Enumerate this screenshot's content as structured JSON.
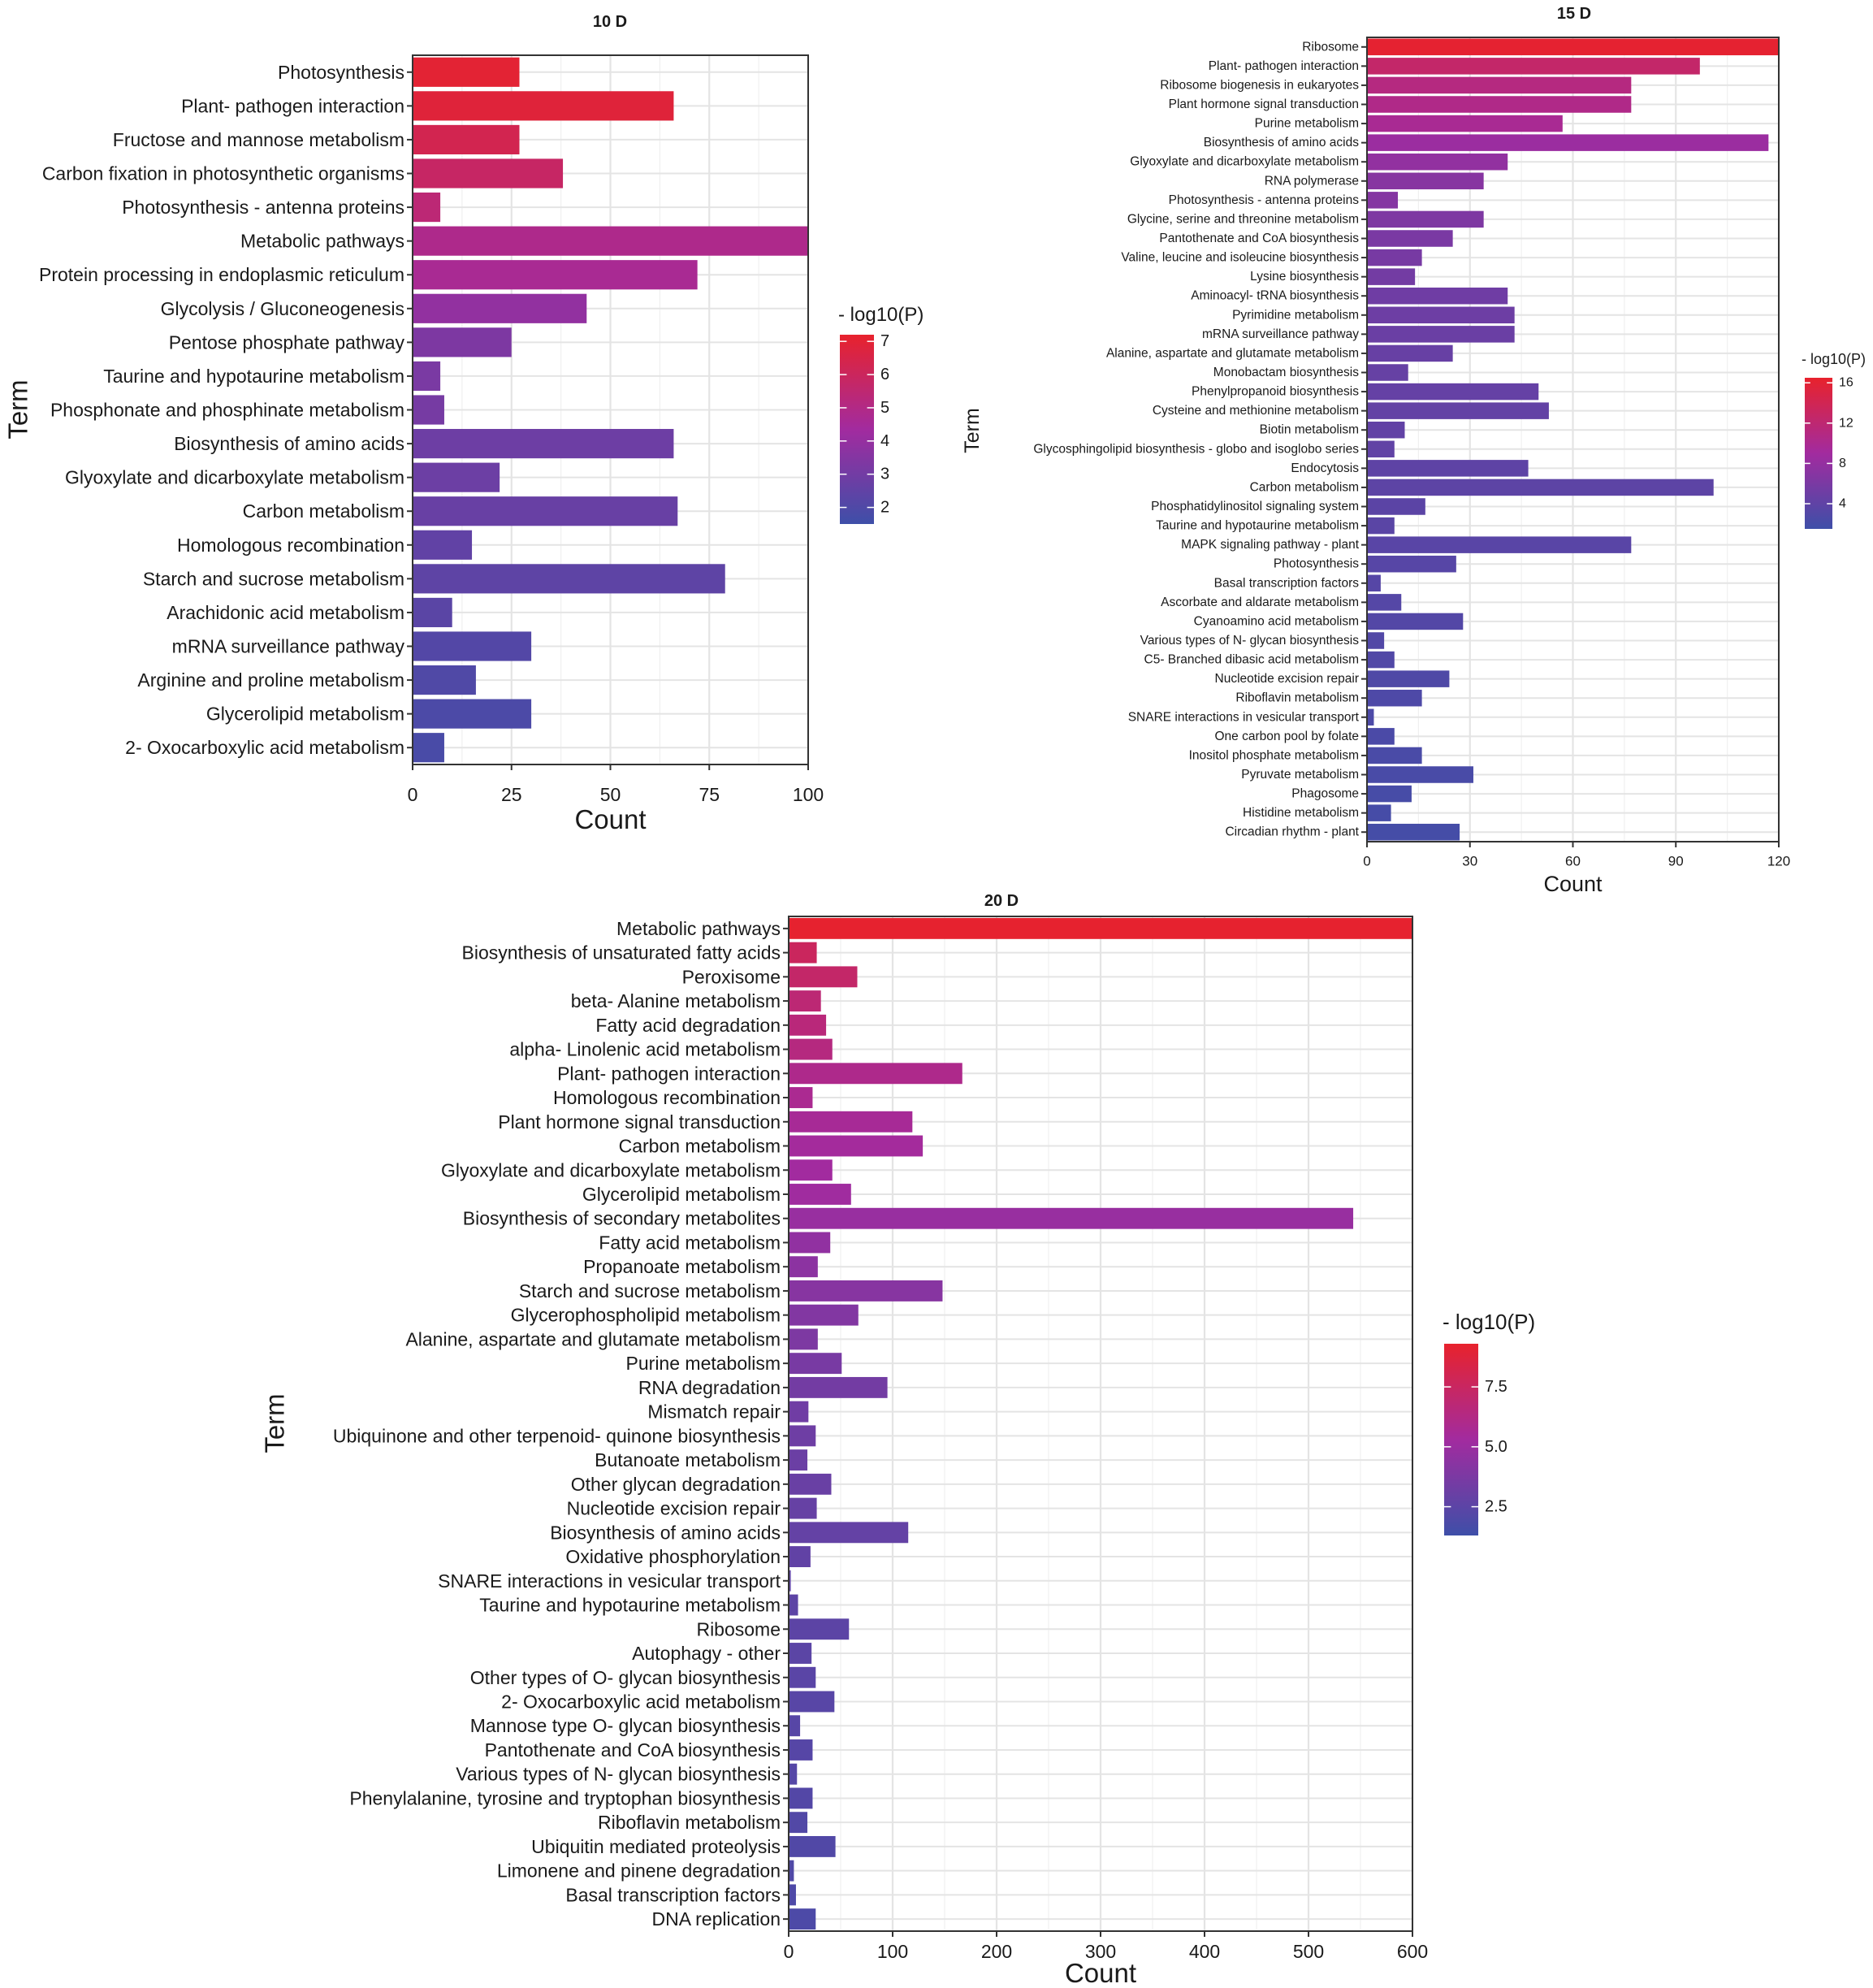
{
  "colorscale": {
    "low": "#3e4fa8",
    "mid": "#a22b9f",
    "high": "#e8222c"
  },
  "chart_data": [
    {
      "type": "bar",
      "orientation": "horizontal",
      "title": "10 D",
      "xlabel": "Count",
      "ylabel": "Term",
      "xlim": [
        0,
        100
      ],
      "xticks": [
        "0",
        "25",
        "50",
        "75",
        "100"
      ],
      "legend_title": "- log10(P)",
      "legend_range": [
        1.5,
        7.2
      ],
      "legend_ticks": [
        "2",
        "3",
        "4",
        "5",
        "6",
        "7"
      ],
      "categories": [
        "Photosynthesis",
        "Plant- pathogen interaction",
        "Fructose and mannose metabolism",
        "Carbon fixation in photosynthetic organisms",
        "Photosynthesis -  antenna proteins",
        "Metabolic pathways",
        "Protein processing in endoplasmic reticulum",
        "Glycolysis / Gluconeogenesis",
        "Pentose phosphate pathway",
        "Taurine and hypotaurine metabolism",
        "Phosphonate and phosphinate metabolism",
        "Biosynthesis of amino acids",
        "Glyoxylate and dicarboxylate metabolism",
        "Carbon metabolism",
        "Homologous recombination",
        "Starch and sucrose metabolism",
        "Arachidonic acid metabolism",
        "mRNA surveillance pathway",
        "Arginine and proline metabolism",
        "Glycerolipid metabolism",
        "2- Oxocarboxylic acid metabolism"
      ],
      "values": [
        27,
        66,
        27,
        38,
        7,
        100,
        72,
        44,
        25,
        7,
        8,
        66,
        22,
        67,
        15,
        79,
        10,
        30,
        16,
        30,
        8
      ],
      "color_values": [
        7.0,
        6.85,
        6.3,
        5.8,
        5.4,
        4.85,
        4.65,
        3.9,
        3.3,
        3.2,
        3.1,
        2.85,
        2.8,
        2.7,
        2.5,
        2.4,
        2.3,
        2.1,
        2.0,
        1.9,
        1.8
      ]
    },
    {
      "type": "bar",
      "orientation": "horizontal",
      "title": "15 D",
      "xlabel": "Count",
      "ylabel": "Term",
      "xlim": [
        0,
        120
      ],
      "xticks": [
        "0",
        "30",
        "60",
        "90",
        "120"
      ],
      "legend_title": "- log10(P)",
      "legend_range": [
        1.5,
        16.5
      ],
      "legend_ticks": [
        "4",
        "8",
        "12",
        "16"
      ],
      "categories": [
        "Ribosome",
        "Plant- pathogen interaction",
        "Ribosome biogenesis in eukaryotes",
        "Plant hormone signal transduction",
        "Purine metabolism",
        "Biosynthesis of amino acids",
        "Glyoxylate and dicarboxylate metabolism",
        "RNA polymerase",
        "Photosynthesis -  antenna proteins",
        "Glycine, serine and threonine metabolism",
        "Pantothenate and CoA biosynthesis",
        "Valine, leucine and isoleucine biosynthesis",
        "Lysine biosynthesis",
        "Aminoacyl- tRNA biosynthesis",
        "Pyrimidine metabolism",
        "mRNA surveillance pathway",
        "Alanine, aspartate and glutamate metabolism",
        "Monobactam biosynthesis",
        "Phenylpropanoid biosynthesis",
        "Cysteine and methionine metabolism",
        "Biotin metabolism",
        "Glycosphingolipid biosynthesis -  globo and isoglobo series",
        "Endocytosis",
        "Carbon metabolism",
        "Phosphatidylinositol signaling system",
        "Taurine and hypotaurine metabolism",
        "MAPK signaling pathway -  plant",
        "Photosynthesis",
        "Basal transcription factors",
        "Ascorbate and aldarate metabolism",
        "Cyanoamino acid metabolism",
        "Various types of N- glycan biosynthesis",
        "C5- Branched dibasic acid metabolism",
        "Nucleotide excision repair",
        "Riboflavin metabolism",
        "SNARE interactions in vesicular transport",
        "One carbon pool by folate",
        "Inositol phosphate metabolism",
        "Pyruvate metabolism",
        "Phagosome",
        "Histidine metabolism",
        "Circadian rhythm -  plant"
      ],
      "values": [
        120,
        97,
        77,
        77,
        57,
        117,
        41,
        34,
        9,
        34,
        25,
        16,
        14,
        41,
        43,
        43,
        25,
        12,
        50,
        53,
        11,
        8,
        47,
        101,
        17,
        8,
        77,
        26,
        4,
        10,
        28,
        5,
        8,
        24,
        16,
        2,
        8,
        16,
        31,
        13,
        7,
        27
      ],
      "color_values": [
        16.2,
        12.5,
        11.0,
        10.5,
        9.8,
        8.5,
        7.8,
        7.0,
        6.8,
        6.3,
        6.0,
        5.8,
        5.5,
        5.2,
        5.0,
        4.8,
        4.6,
        4.5,
        4.4,
        4.3,
        4.2,
        4.1,
        3.9,
        3.8,
        3.7,
        3.6,
        3.5,
        3.4,
        3.3,
        3.2,
        3.1,
        3.0,
        2.9,
        2.8,
        2.7,
        2.6,
        2.5,
        2.4,
        2.3,
        2.2,
        2.1,
        2.0
      ]
    },
    {
      "type": "bar",
      "orientation": "horizontal",
      "title": "20 D",
      "xlabel": "Count",
      "ylabel": "Term",
      "xlim": [
        0,
        600
      ],
      "xticks": [
        "0",
        "100",
        "200",
        "300",
        "400",
        "500",
        "600"
      ],
      "legend_title": "- log10(P)",
      "legend_range": [
        1.3,
        9.3
      ],
      "legend_ticks": [
        "2.5",
        "5.0",
        "7.5"
      ],
      "categories": [
        "Metabolic pathways",
        "Biosynthesis of unsaturated fatty acids",
        "Peroxisome",
        "beta- Alanine metabolism",
        "Fatty acid degradation",
        "alpha- Linolenic acid metabolism",
        "Plant- pathogen interaction",
        "Homologous recombination",
        "Plant hormone signal transduction",
        "Carbon metabolism",
        "Glyoxylate and dicarboxylate metabolism",
        "Glycerolipid metabolism",
        "Biosynthesis of secondary metabolites",
        "Fatty acid metabolism",
        "Propanoate metabolism",
        "Starch and sucrose metabolism",
        "Glycerophospholipid metabolism",
        "Alanine, aspartate and glutamate metabolism",
        "Purine metabolism",
        "RNA degradation",
        "Mismatch repair",
        "Ubiquinone and other terpenoid- quinone biosynthesis",
        "Butanoate metabolism",
        "Other glycan degradation",
        "Nucleotide excision repair",
        "Biosynthesis of amino acids",
        "Oxidative phosphorylation",
        "SNARE interactions in vesicular transport",
        "Taurine and hypotaurine metabolism",
        "Ribosome",
        "Autophagy -  other",
        "Other types of O- glycan biosynthesis",
        "2- Oxocarboxylic acid metabolism",
        "Mannose type O- glycan biosynthesis",
        "Pantothenate and CoA biosynthesis",
        "Various types of N- glycan biosynthesis",
        "Phenylalanine, tyrosine and tryptophan biosynthesis",
        "Riboflavin metabolism",
        "Ubiquitin mediated proteolysis",
        "Limonene and pinene degradation",
        "Basal transcription factors",
        "DNA replication"
      ],
      "values": [
        600,
        27,
        66,
        31,
        36,
        42,
        167,
        23,
        119,
        129,
        42,
        60,
        543,
        40,
        28,
        148,
        67,
        28,
        51,
        95,
        19,
        26,
        18,
        41,
        27,
        115,
        21,
        2,
        9,
        58,
        22,
        26,
        44,
        11,
        23,
        8,
        23,
        18,
        45,
        5,
        7,
        26
      ],
      "color_values": [
        9.2,
        7.6,
        7.2,
        6.8,
        6.6,
        6.4,
        6.0,
        5.8,
        5.6,
        5.4,
        5.3,
        5.2,
        4.9,
        4.6,
        4.4,
        4.2,
        4.0,
        3.8,
        3.6,
        3.4,
        3.3,
        3.2,
        3.1,
        3.0,
        2.9,
        2.8,
        2.7,
        2.6,
        2.55,
        2.5,
        2.45,
        2.4,
        2.35,
        2.3,
        2.25,
        2.2,
        2.15,
        2.1,
        2.05,
        2.0,
        1.95,
        1.9
      ]
    }
  ]
}
